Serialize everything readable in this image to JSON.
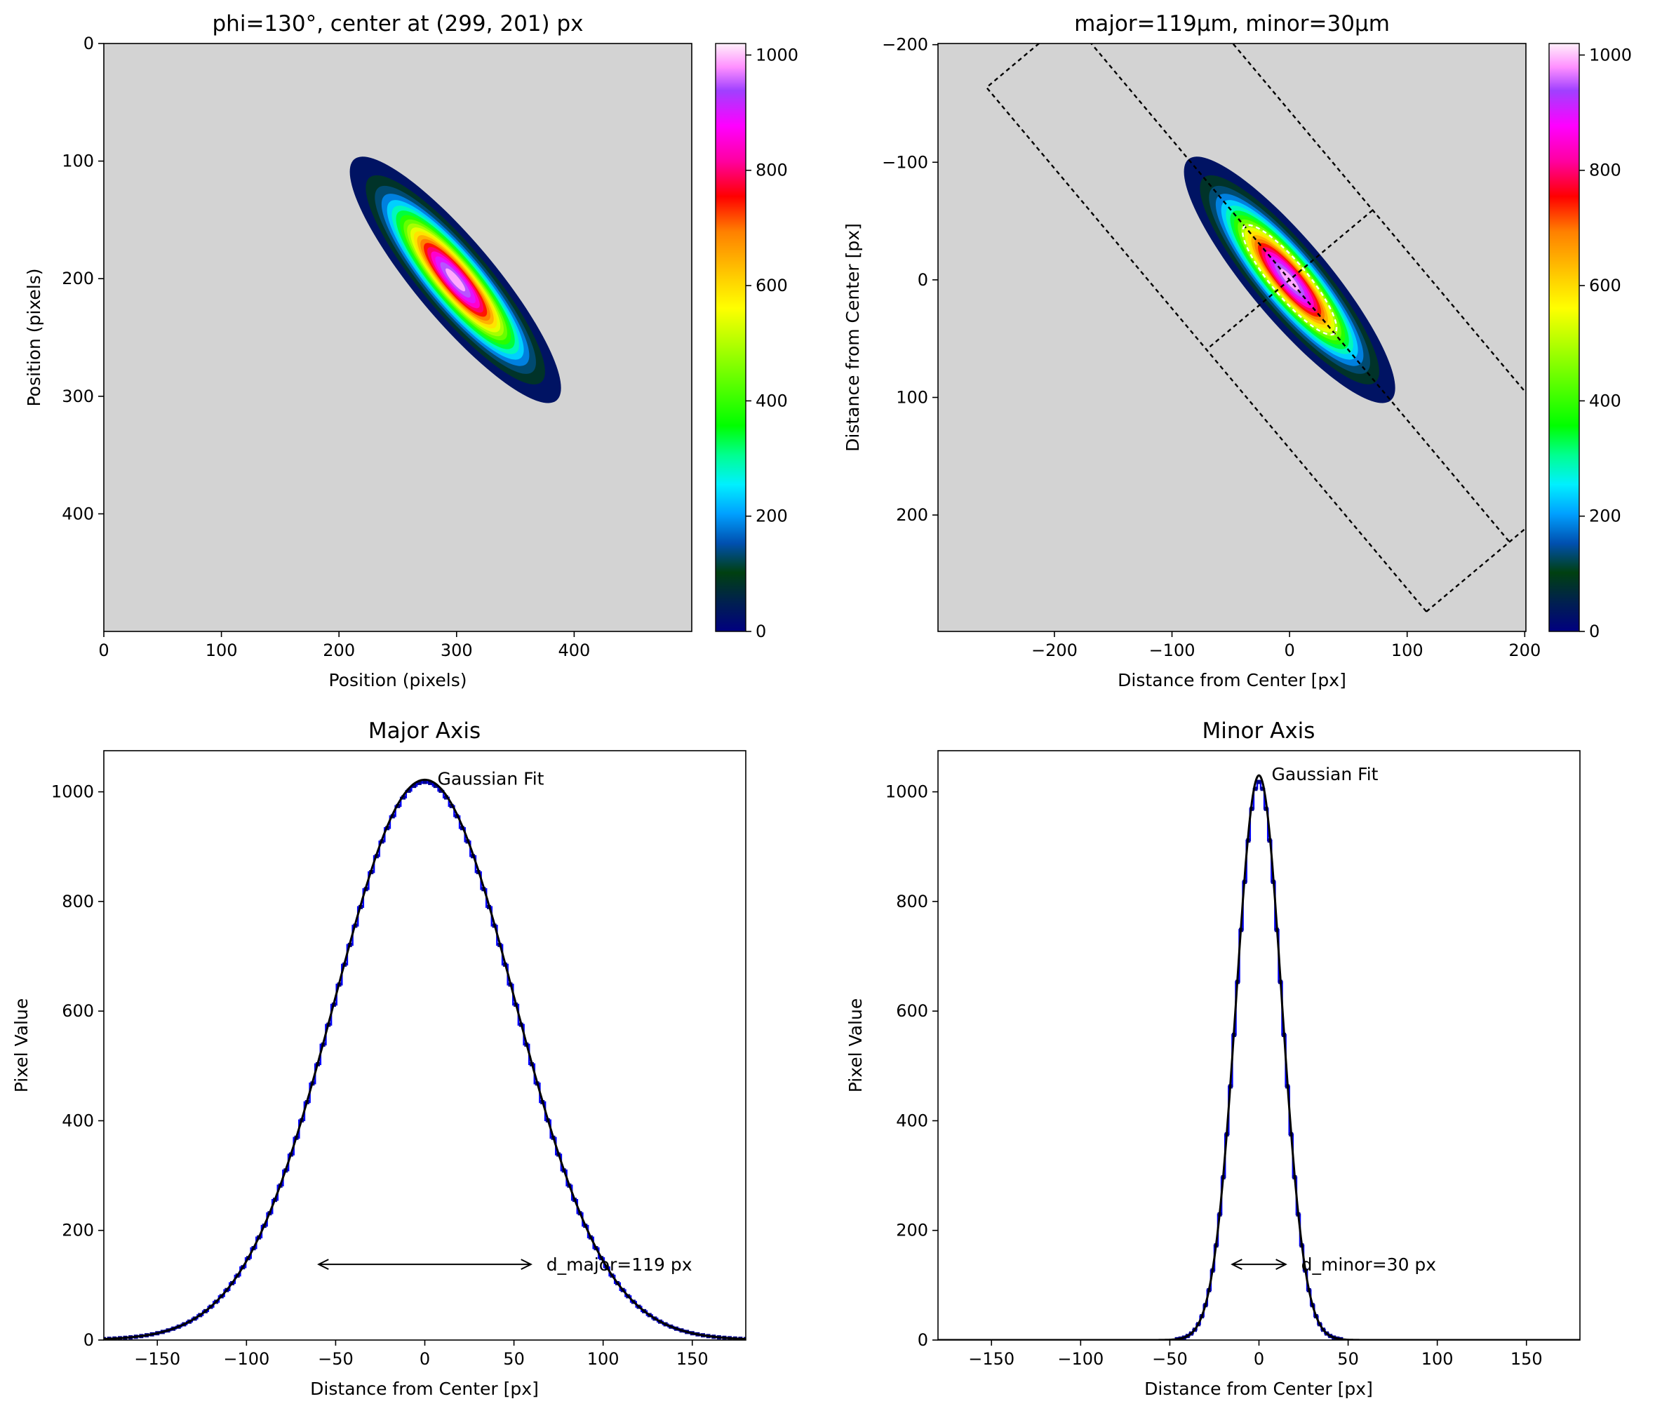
{
  "colors": {
    "background": "#d3d3d3",
    "colormap": "gist_ncar",
    "profile_data": "#0000ff",
    "fit_line": "#000000",
    "frame": "#000000"
  },
  "chart_data": [
    {
      "type": "heatmap",
      "panel": "image",
      "title": "phi=130°, center at (299, 201) px",
      "xlabel": "Position (pixels)",
      "ylabel": "Position (pixels)",
      "xlim": [
        0,
        500
      ],
      "ylim": [
        500,
        0
      ],
      "xticks": [
        "0",
        "100",
        "200",
        "300",
        "400"
      ],
      "yticks": [
        "0",
        "100",
        "200",
        "300",
        "400"
      ],
      "ellipse": {
        "cx": 299,
        "cy": 201,
        "phi_deg": 130,
        "major_diameter": 119,
        "minor_diameter": 30,
        "peak": 1020
      },
      "colorbar": {
        "min": 0,
        "max": 1020,
        "ticks": [
          "0",
          "200",
          "400",
          "600",
          "800",
          "1000"
        ]
      }
    },
    {
      "type": "heatmap",
      "panel": "centered-image",
      "title": "major=119µm, minor=30µm",
      "xlabel": "Distance from Center [px]",
      "ylabel": "Distance from Center [px]",
      "xlim": [
        -299,
        201
      ],
      "ylim": [
        299,
        -201
      ],
      "xticks": [
        "−200",
        "−100",
        "0",
        "100",
        "200"
      ],
      "yticks": [
        "−200",
        "−100",
        "0",
        "100",
        "200"
      ],
      "overlays": [
        "integration-rectangle",
        "fit-ellipse",
        "major-axis-line",
        "minor-axis-line"
      ],
      "colorbar": {
        "min": 0,
        "max": 1020,
        "ticks": [
          "0",
          "200",
          "400",
          "600",
          "800",
          "1000"
        ]
      }
    },
    {
      "type": "line",
      "panel": "major-profile",
      "title": "Major Axis",
      "xlabel": "Distance from Center [px]",
      "ylabel": "Pixel Value",
      "xlim": [
        -180,
        180
      ],
      "ylim": [
        0,
        1075
      ],
      "xticks": [
        "−150",
        "−100",
        "−50",
        "0",
        "50",
        "100",
        "150"
      ],
      "yticks": [
        "0",
        "200",
        "400",
        "600",
        "800",
        "1000"
      ],
      "series": [
        {
          "kind": "data",
          "amplitude": 1018,
          "diameter": 119,
          "x_range": [
            -180,
            180
          ],
          "step": 3
        },
        {
          "kind": "fit",
          "amplitude": 1022,
          "diameter": 119
        }
      ],
      "annotations": {
        "fit_label": "Gaussian Fit",
        "diameter_label": "d_major=119 px",
        "arrow_x": [
          -59.5,
          59.5
        ],
        "arrow_y": 138
      }
    },
    {
      "type": "line",
      "panel": "minor-profile",
      "title": "Minor Axis",
      "xlabel": "Distance from Center [px]",
      "ylabel": "Pixel Value",
      "xlim": [
        -180,
        180
      ],
      "ylim": [
        0,
        1075
      ],
      "xticks": [
        "−150",
        "−100",
        "−50",
        "0",
        "50",
        "100",
        "150"
      ],
      "yticks": [
        "0",
        "200",
        "400",
        "600",
        "800",
        "1000"
      ],
      "series": [
        {
          "kind": "data",
          "amplitude": 1018,
          "diameter": 30,
          "x_range": [
            -46,
            46
          ],
          "step": 2
        },
        {
          "kind": "fit",
          "amplitude": 1030,
          "diameter": 30
        }
      ],
      "annotations": {
        "fit_label": "Gaussian Fit",
        "diameter_label": "d_minor=30 px",
        "arrow_x": [
          -15,
          15
        ],
        "arrow_y": 138
      }
    }
  ]
}
